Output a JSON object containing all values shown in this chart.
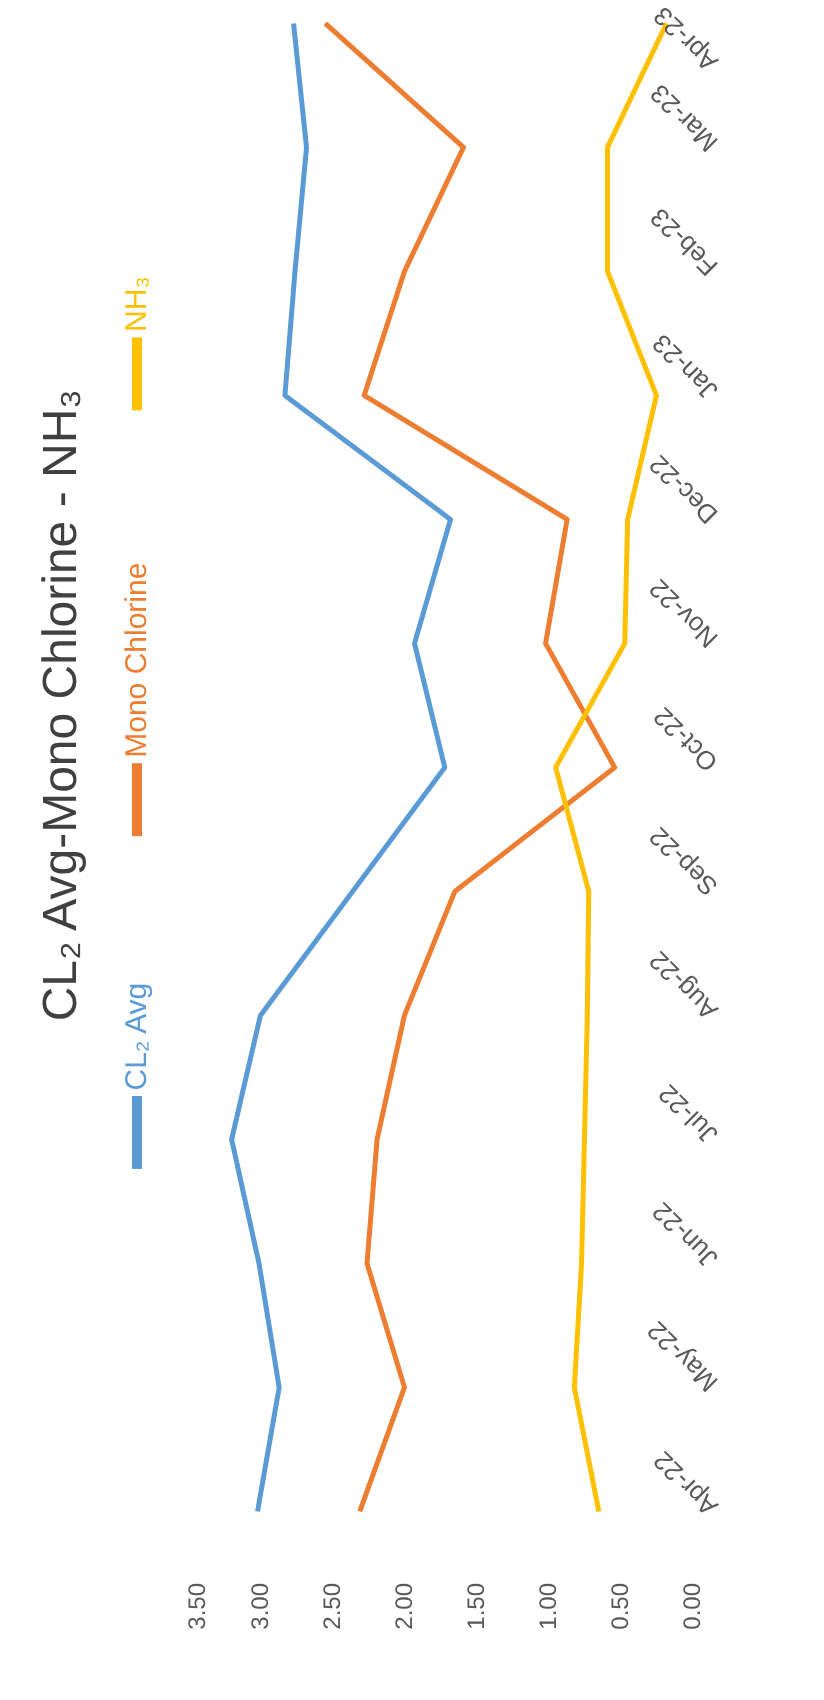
{
  "chart_data": {
    "type": "line",
    "orientation": "horizontal",
    "title": "CL₂ Avg-Mono Chlorine - NH₃",
    "categories": [
      "Apr-23",
      "Mar-23",
      "Feb-23",
      "Jan-23",
      "Dec-22",
      "Nov-22",
      "Oct-22",
      "Sep-22",
      "Aug-22",
      "Jul-22",
      "Jun-22",
      "May-22",
      "Apr-22"
    ],
    "series": [
      {
        "name": "CL₂ Avg",
        "color": "#5b9bd5",
        "values": [
          2.76,
          2.67,
          2.75,
          2.82,
          1.67,
          1.92,
          1.71,
          2.35,
          2.99,
          3.19,
          3.0,
          2.86,
          3.01
        ]
      },
      {
        "name": "Mono Chlorine",
        "color": "#ed7d31",
        "values": [
          2.54,
          1.58,
          1.99,
          2.27,
          0.86,
          1.01,
          0.53,
          1.64,
          1.99,
          2.18,
          2.25,
          1.99,
          2.3
        ]
      },
      {
        "name": "NH₃",
        "color": "#ffc000",
        "values": [
          0.17,
          0.58,
          0.58,
          0.24,
          0.44,
          0.46,
          0.94,
          0.71,
          0.72,
          0.74,
          0.76,
          0.81,
          0.64
        ]
      }
    ],
    "xlim": [
      3.5,
      0
    ],
    "xticks": [
      {
        "value": 0,
        "label": "0.00"
      },
      {
        "value": 0.5,
        "label": "0.50"
      },
      {
        "value": 1,
        "label": "1.00"
      },
      {
        "value": 1.5,
        "label": "1.50"
      },
      {
        "value": 2,
        "label": "2.00"
      },
      {
        "value": 2.5,
        "label": "2.50"
      },
      {
        "value": 3,
        "label": "3.00"
      },
      {
        "value": 3.5,
        "label": "3.50"
      }
    ],
    "legend": "left"
  }
}
